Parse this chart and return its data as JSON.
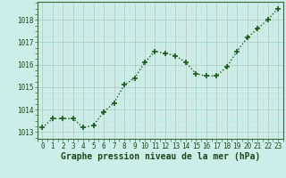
{
  "x": [
    0,
    1,
    2,
    3,
    4,
    5,
    6,
    7,
    8,
    9,
    10,
    11,
    12,
    13,
    14,
    15,
    16,
    17,
    18,
    19,
    20,
    21,
    22,
    23
  ],
  "y": [
    1013.2,
    1013.6,
    1013.6,
    1013.6,
    1013.2,
    1013.3,
    1013.9,
    1014.3,
    1015.1,
    1015.4,
    1016.1,
    1016.6,
    1016.5,
    1016.4,
    1016.1,
    1015.6,
    1015.5,
    1015.5,
    1015.9,
    1016.6,
    1017.2,
    1017.6,
    1018.0,
    1018.5
  ],
  "line_color": "#1a5c1a",
  "marker": "+",
  "marker_size": 5,
  "bg_color": "#cceee8",
  "grid_color_major": "#b8c8c4",
  "grid_color_minor": "#cce0dc",
  "xlabel": "Graphe pression niveau de la mer (hPa)",
  "ylabel_ticks": [
    1013,
    1014,
    1015,
    1016,
    1017,
    1018
  ],
  "ylim": [
    1012.7,
    1018.8
  ],
  "xlim": [
    -0.5,
    23.5
  ],
  "xtick_labels": [
    "0",
    "1",
    "2",
    "3",
    "4",
    "5",
    "6",
    "7",
    "8",
    "9",
    "10",
    "11",
    "12",
    "13",
    "14",
    "15",
    "16",
    "17",
    "18",
    "19",
    "20",
    "21",
    "22",
    "23"
  ],
  "xlabel_fontsize": 7,
  "tick_fontsize": 5.5,
  "line_width": 1.0,
  "marker_linewidth": 1.2
}
